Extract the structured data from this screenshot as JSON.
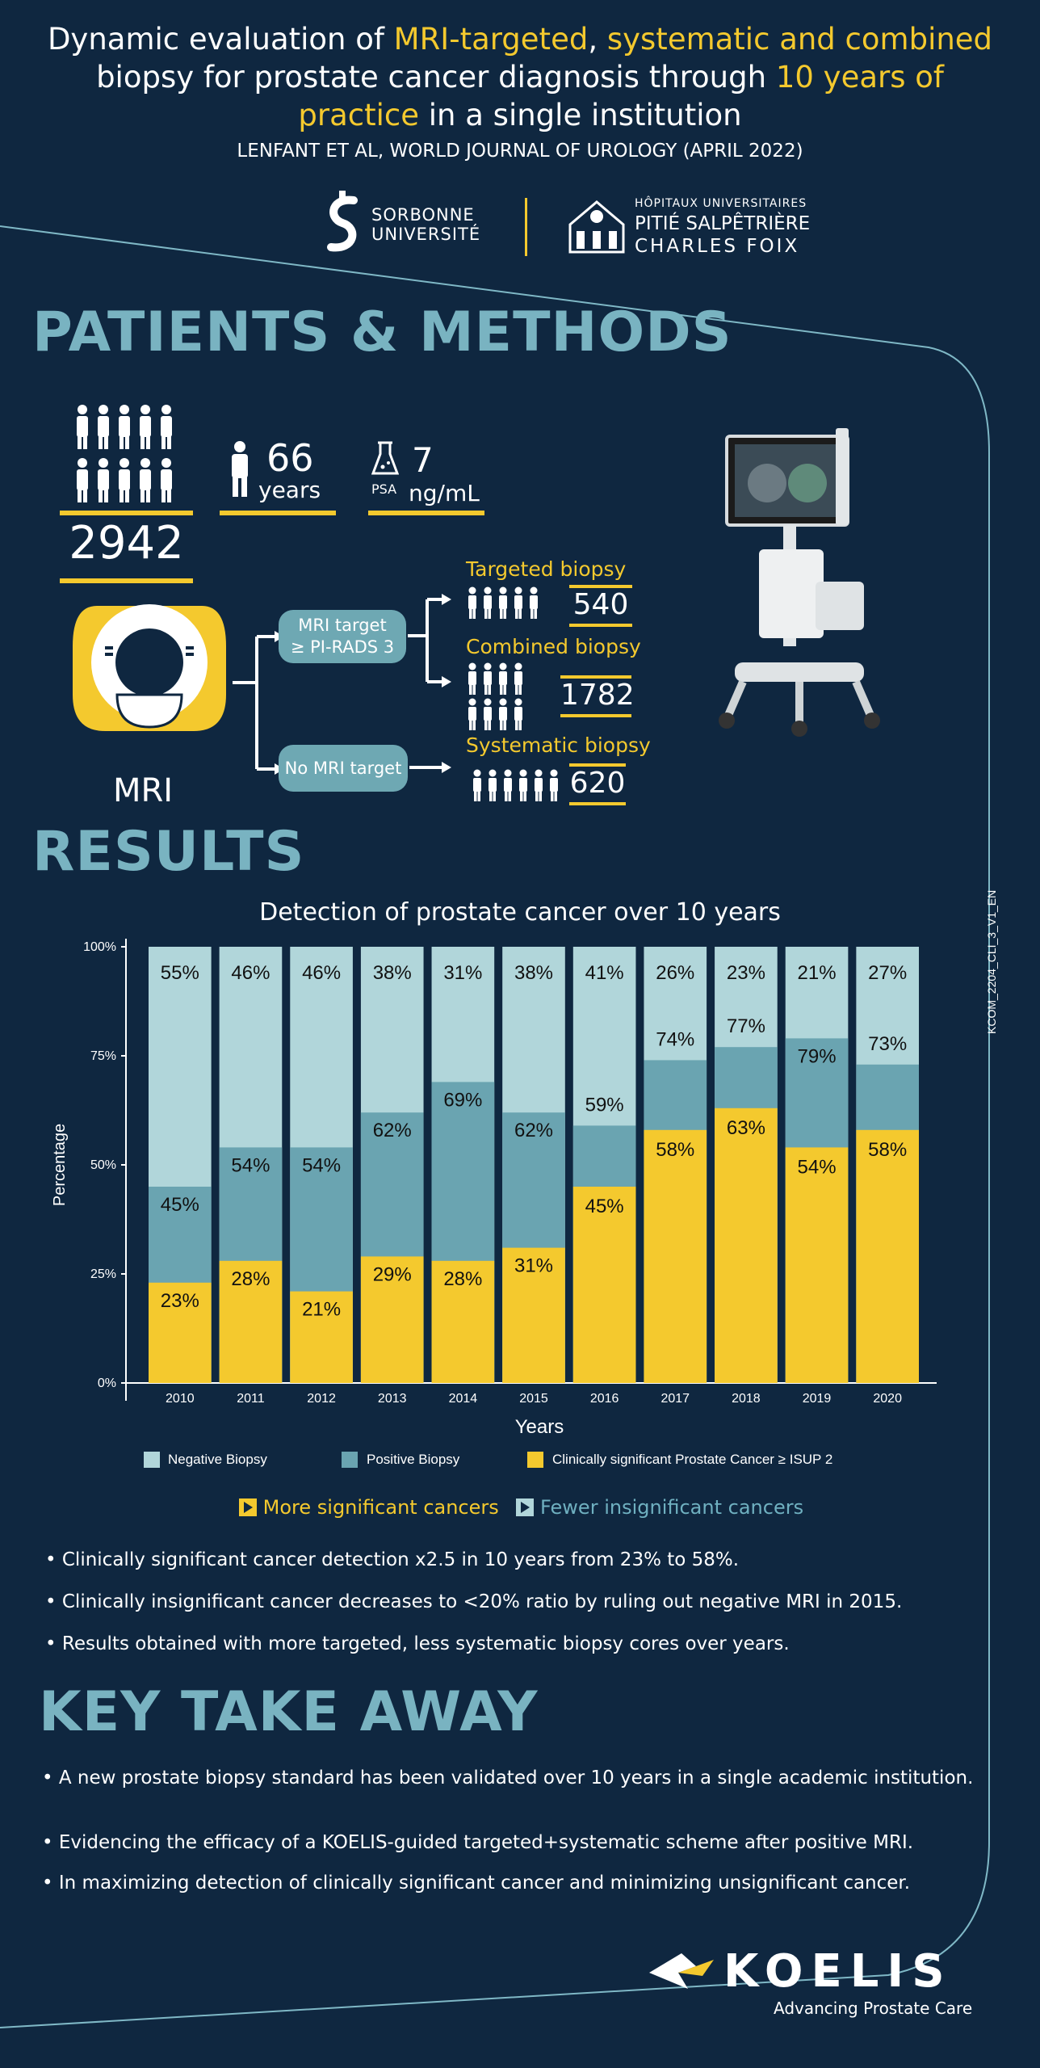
{
  "header": {
    "line1": [
      "Dynamic evaluation of ",
      "MRI-targeted",
      ", ",
      "systematic and combined"
    ],
    "line2": [
      "biopsy for prostate cancer diagnosis through ",
      "10 years of"
    ],
    "line3": [
      "practice",
      " in a single institution"
    ],
    "citation": "LENFANT ET AL, WORLD JOURNAL OF UROLOGY (APRIL 2022)",
    "logo1_line1": "SORBONNE",
    "logo1_line2": "UNIVERSITÉ",
    "logo2_line1": "HÔPITAUX UNIVERSITAIRES",
    "logo2_line2": "PITIÉ SALPÊTRIÈRE",
    "logo2_line3": "CHARLES FOIX"
  },
  "methods": {
    "title": "PATIENTS & METHODS",
    "patients": "2942",
    "age_value": "66",
    "age_unit": "years",
    "psa_label": "PSA",
    "psa_value": "7",
    "psa_unit": "ng/mL",
    "mri_label": "MRI",
    "mri_target": "MRI target",
    "mri_target_2": "≥ PI-RADS 3",
    "no_target": "No MRI target",
    "targeted_label": "Targeted biopsy",
    "targeted_value": "540",
    "combined_label": "Combined biopsy",
    "combined_value": "1782",
    "systematic_label": "Systematic biopsy",
    "systematic_value": "620"
  },
  "results": {
    "title": "RESULTS",
    "legend_more": "More significant cancers",
    "legend_fewer": "Fewer insignificant cancers",
    "bullets": [
      "• Clinically significant cancer detection x2.5 in 10 years from 23% to 58%.",
      "• Clinically insignificant cancer decreases to <20% ratio by ruling out negative MRI in 2015.",
      "• Results obtained with more targeted, less systematic biopsy cores over years."
    ]
  },
  "chart_data": {
    "type": "bar",
    "title": "Detection of prostate cancer over 10 years",
    "xlabel": "Years",
    "ylabel": "Percentage",
    "ylim": [
      0,
      100
    ],
    "yticks": [
      "0%",
      "25%",
      "50%",
      "75%",
      "100%"
    ],
    "categories": [
      "2010",
      "2011",
      "2012",
      "2013",
      "2014",
      "2015",
      "2016",
      "2017",
      "2018",
      "2019",
      "2020"
    ],
    "series": [
      {
        "name": "Negative Biopsy",
        "color": "#b1d6da",
        "values": [
          55,
          46,
          46,
          38,
          31,
          38,
          41,
          26,
          23,
          21,
          27
        ]
      },
      {
        "name": "Positive Biopsy",
        "color": "#6aa4b1",
        "values": [
          45,
          54,
          54,
          62,
          69,
          62,
          59,
          74,
          77,
          79,
          73
        ]
      },
      {
        "name": "Clinically significant Prostate Cancer ≥ ISUP 2",
        "color": "#f4c92e",
        "values": [
          23,
          28,
          21,
          29,
          28,
          31,
          45,
          58,
          63,
          54,
          58
        ]
      }
    ],
    "legend_position": "bottom"
  },
  "takeaway": {
    "title": "KEY TAKE AWAY",
    "bullets": [
      "• A new prostate biopsy standard has been validated over 10 years in a single academic institution.",
      "• Evidencing the efficacy of a KOELIS-guided targeted+systematic scheme after positive MRI.",
      "• In maximizing detection of clinically significant cancer and minimizing unsignificant cancer."
    ]
  },
  "footer": {
    "brand": "KOELIS",
    "tagline": "Advancing Prostate Care",
    "side_code": "KCOM_2204_CLI_3_V1_EN"
  },
  "colors": {
    "background": "#0f2740",
    "accent_yellow": "#f4c92e",
    "teal": "#79b3c1"
  }
}
